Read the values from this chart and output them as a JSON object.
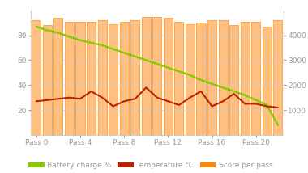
{
  "passes": [
    0,
    1,
    2,
    3,
    4,
    5,
    6,
    7,
    8,
    9,
    10,
    11,
    12,
    13,
    14,
    15,
    16,
    17,
    18,
    19,
    20,
    21,
    22
  ],
  "bar_heights": [
    4600,
    4400,
    4700,
    4550,
    4550,
    4550,
    4600,
    4450,
    4550,
    4600,
    4750,
    4750,
    4700,
    4550,
    4450,
    4500,
    4600,
    4600,
    4400,
    4550,
    4550,
    4350,
    4600
  ],
  "battery_charge": [
    87,
    84,
    82,
    79,
    76,
    74,
    72,
    69,
    66,
    63,
    60,
    57,
    54,
    51,
    48,
    44,
    41,
    38,
    35,
    32,
    28,
    24,
    8
  ],
  "temperature": [
    27,
    28,
    29,
    30,
    29,
    35,
    30,
    23,
    27,
    29,
    38,
    30,
    27,
    24,
    30,
    35,
    23,
    27,
    33,
    25,
    25,
    23,
    22
  ],
  "bar_color_face": "#FFAA55",
  "bar_color_edge": "#FF8800",
  "bar_alpha": 0.75,
  "battery_color": "#88CC00",
  "temp_color": "#BB2200",
  "score_color": "#FF8800",
  "bg_color": "#ffffff",
  "plot_bg_color": "#ffffff",
  "grid_color": "#cccccc",
  "left_ylim": [
    0,
    100
  ],
  "right_ylim": [
    0,
    5000
  ],
  "left_yticks": [
    20,
    40,
    60,
    80
  ],
  "right_yticks": [
    1000,
    2000,
    3000,
    4000
  ],
  "xtick_positions": [
    0,
    4,
    8,
    12,
    16,
    20
  ],
  "xtick_labels": [
    "Pass 0",
    "Pass 4",
    "Pass 8",
    "Pass 12",
    "Pass 16",
    "Pass 20"
  ],
  "legend_items": [
    {
      "label": "Battery charge %",
      "color": "#88CC00"
    },
    {
      "label": "Temperature °C",
      "color": "#BB2200"
    },
    {
      "label": "Score per pass",
      "color": "#FF8800"
    }
  ],
  "tick_label_color": "#999999",
  "legend_fontsize": 6.5,
  "bar_linewidth": 0.6,
  "battery_linewidth": 1.8,
  "temp_linewidth": 1.5,
  "figsize": [
    3.8,
    2.14
  ],
  "dpi": 100
}
